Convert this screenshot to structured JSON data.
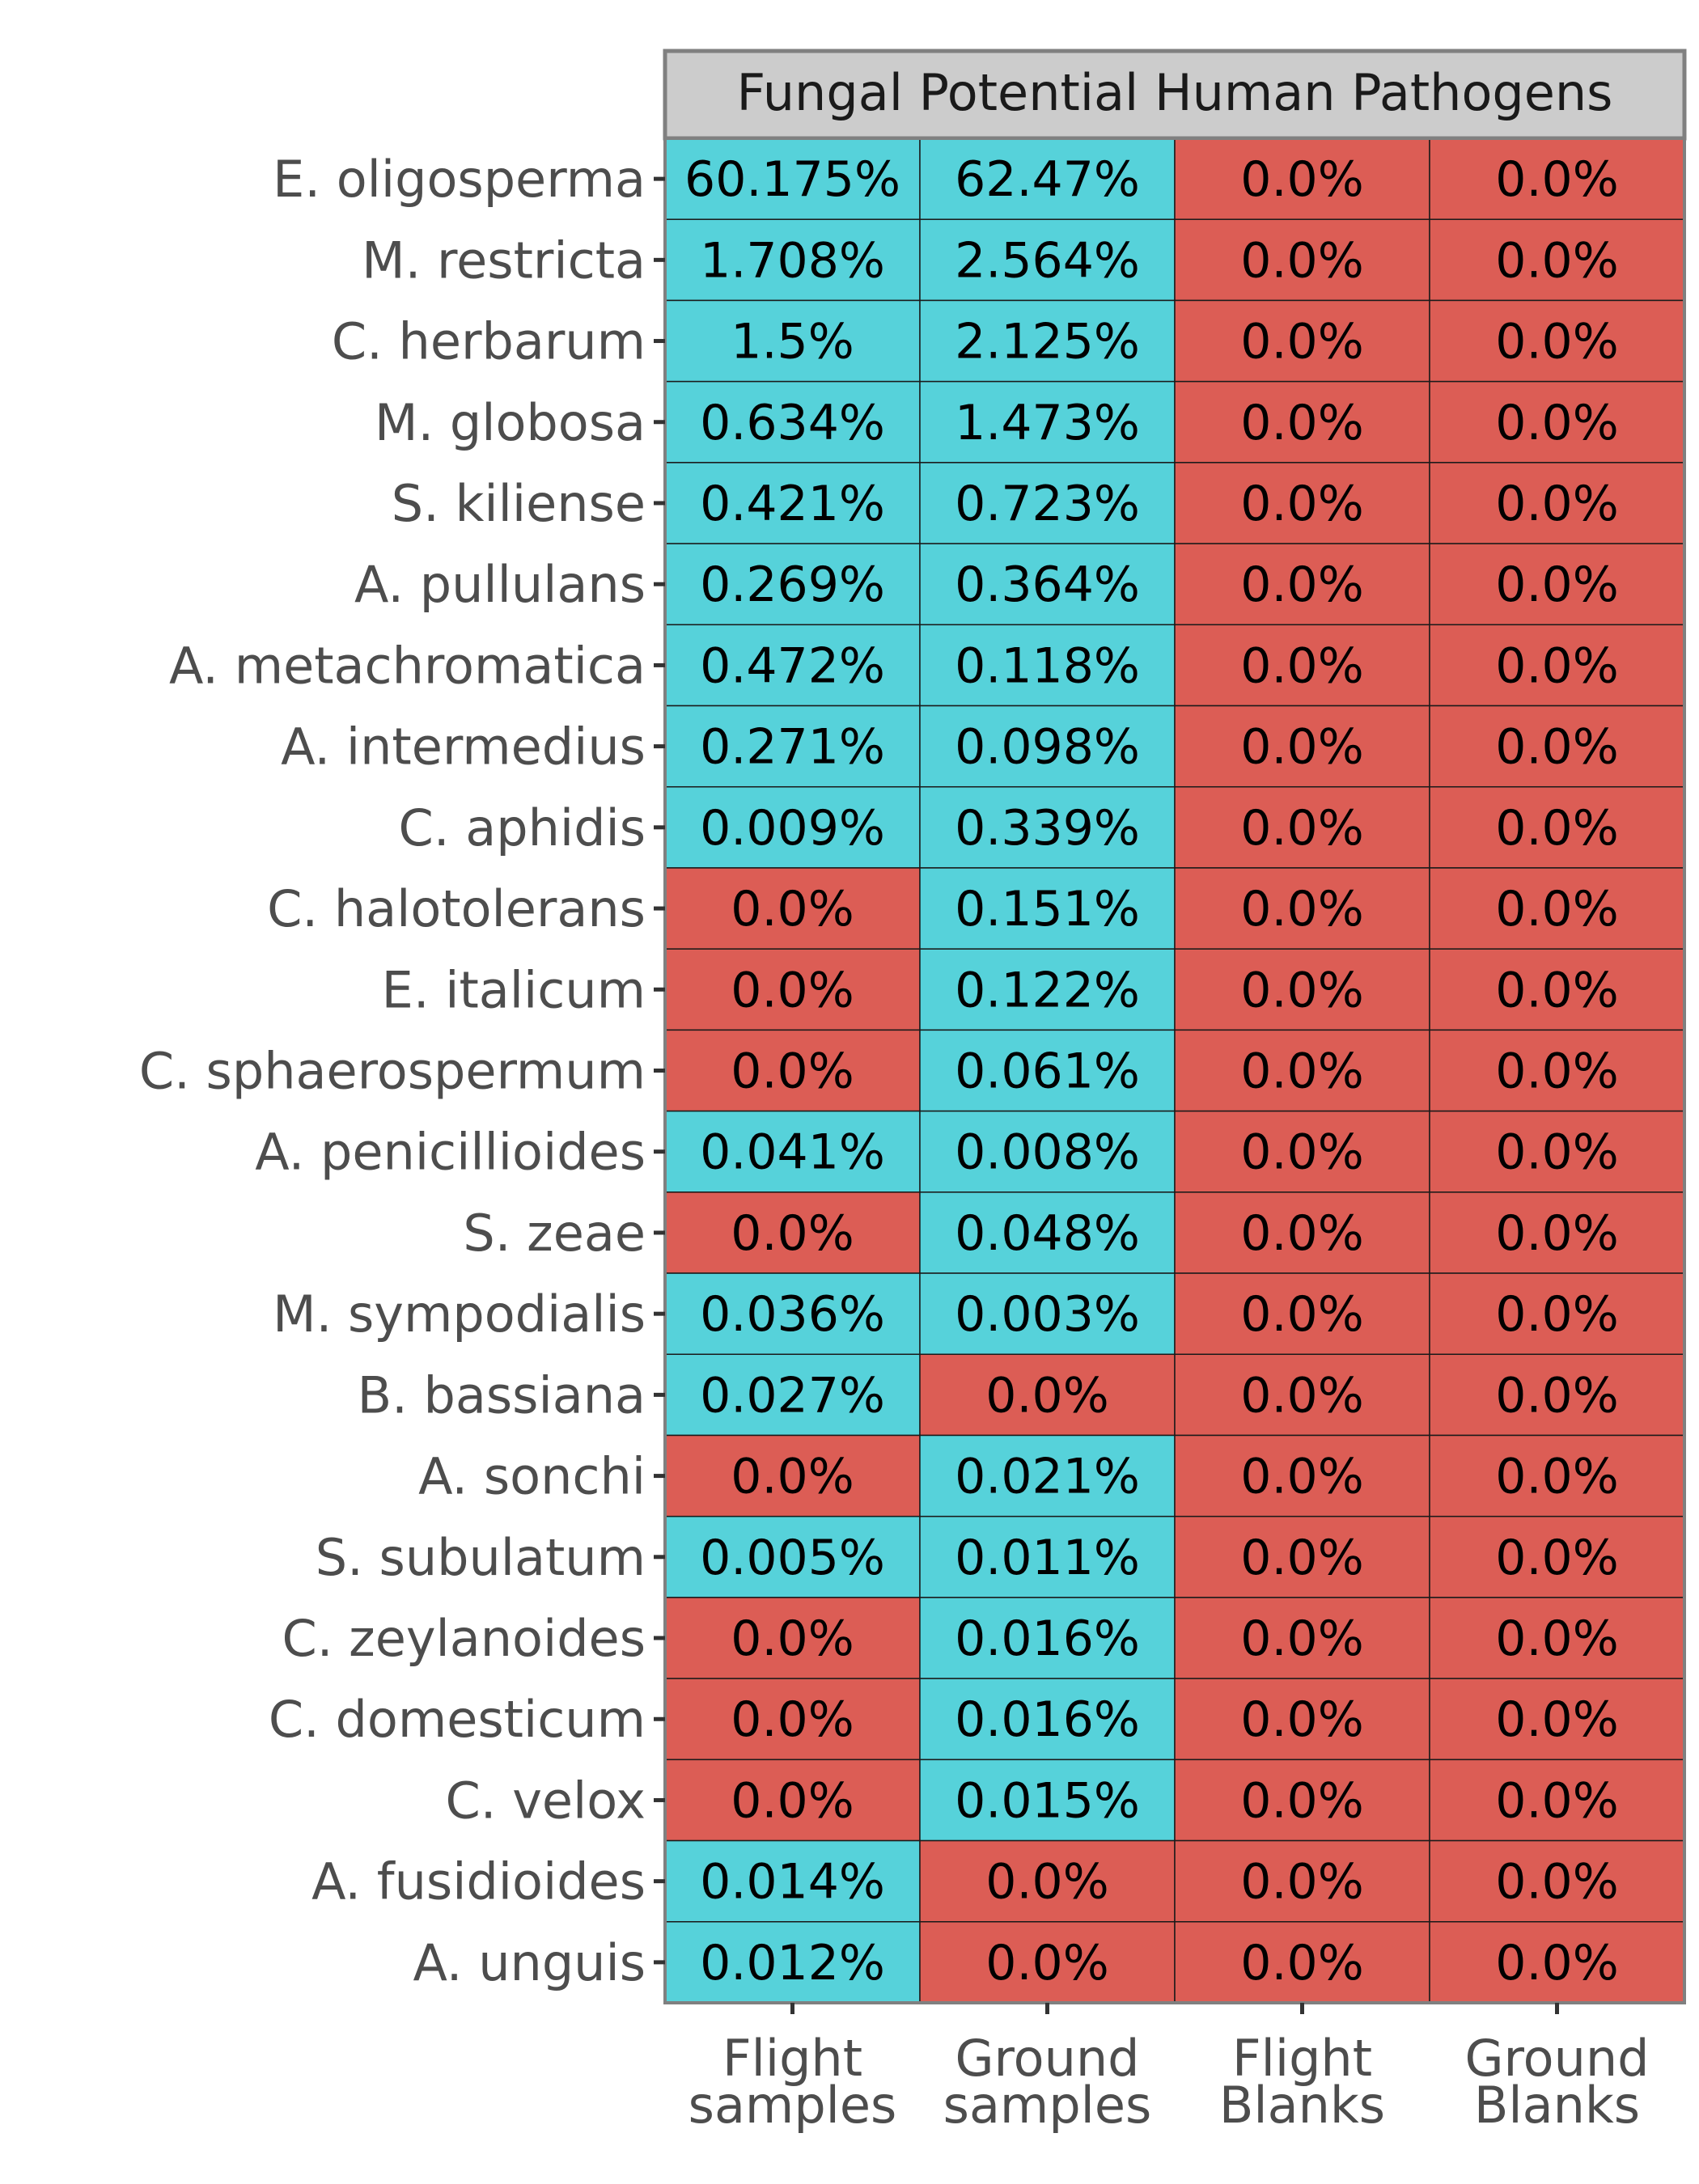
{
  "chart_data": {
    "type": "heatmap",
    "panel_title": "Fungal Potential Human Pathogens",
    "columns": [
      {
        "line1": "Flight",
        "line2": "samples"
      },
      {
        "line1": "Ground",
        "line2": "samples"
      },
      {
        "line1": "Flight",
        "line2": "Blanks"
      },
      {
        "line1": "Ground",
        "line2": "Blanks"
      }
    ],
    "rows": [
      {
        "species": "E. oligosperma",
        "values": [
          60.175,
          62.47,
          0.0,
          0.0
        ],
        "labels": [
          "60.175%",
          "62.47%",
          "0.0%",
          "0.0%"
        ]
      },
      {
        "species": "M. restricta",
        "values": [
          1.708,
          2.564,
          0.0,
          0.0
        ],
        "labels": [
          "1.708%",
          "2.564%",
          "0.0%",
          "0.0%"
        ]
      },
      {
        "species": "C. herbarum",
        "values": [
          1.5,
          2.125,
          0.0,
          0.0
        ],
        "labels": [
          "1.5%",
          "2.125%",
          "0.0%",
          "0.0%"
        ]
      },
      {
        "species": "M. globosa",
        "values": [
          0.634,
          1.473,
          0.0,
          0.0
        ],
        "labels": [
          "0.634%",
          "1.473%",
          "0.0%",
          "0.0%"
        ]
      },
      {
        "species": "S. kiliense",
        "values": [
          0.421,
          0.723,
          0.0,
          0.0
        ],
        "labels": [
          "0.421%",
          "0.723%",
          "0.0%",
          "0.0%"
        ]
      },
      {
        "species": "A. pullulans",
        "values": [
          0.269,
          0.364,
          0.0,
          0.0
        ],
        "labels": [
          "0.269%",
          "0.364%",
          "0.0%",
          "0.0%"
        ]
      },
      {
        "species": "A. metachromatica",
        "values": [
          0.472,
          0.118,
          0.0,
          0.0
        ],
        "labels": [
          "0.472%",
          "0.118%",
          "0.0%",
          "0.0%"
        ]
      },
      {
        "species": "A. intermedius",
        "values": [
          0.271,
          0.098,
          0.0,
          0.0
        ],
        "labels": [
          "0.271%",
          "0.098%",
          "0.0%",
          "0.0%"
        ]
      },
      {
        "species": "C. aphidis",
        "values": [
          0.009,
          0.339,
          0.0,
          0.0
        ],
        "labels": [
          "0.009%",
          "0.339%",
          "0.0%",
          "0.0%"
        ]
      },
      {
        "species": "C. halotolerans",
        "values": [
          0.0,
          0.151,
          0.0,
          0.0
        ],
        "labels": [
          "0.0%",
          "0.151%",
          "0.0%",
          "0.0%"
        ]
      },
      {
        "species": "E. italicum",
        "values": [
          0.0,
          0.122,
          0.0,
          0.0
        ],
        "labels": [
          "0.0%",
          "0.122%",
          "0.0%",
          "0.0%"
        ]
      },
      {
        "species": "C. sphaerospermum",
        "values": [
          0.0,
          0.061,
          0.0,
          0.0
        ],
        "labels": [
          "0.0%",
          "0.061%",
          "0.0%",
          "0.0%"
        ]
      },
      {
        "species": "A. penicillioides",
        "values": [
          0.041,
          0.008,
          0.0,
          0.0
        ],
        "labels": [
          "0.041%",
          "0.008%",
          "0.0%",
          "0.0%"
        ]
      },
      {
        "species": "S. zeae",
        "values": [
          0.0,
          0.048,
          0.0,
          0.0
        ],
        "labels": [
          "0.0%",
          "0.048%",
          "0.0%",
          "0.0%"
        ]
      },
      {
        "species": "M. sympodialis",
        "values": [
          0.036,
          0.003,
          0.0,
          0.0
        ],
        "labels": [
          "0.036%",
          "0.003%",
          "0.0%",
          "0.0%"
        ]
      },
      {
        "species": "B. bassiana",
        "values": [
          0.027,
          0.0,
          0.0,
          0.0
        ],
        "labels": [
          "0.027%",
          "0.0%",
          "0.0%",
          "0.0%"
        ]
      },
      {
        "species": "A. sonchi",
        "values": [
          0.0,
          0.021,
          0.0,
          0.0
        ],
        "labels": [
          "0.0%",
          "0.021%",
          "0.0%",
          "0.0%"
        ]
      },
      {
        "species": "S. subulatum",
        "values": [
          0.005,
          0.011,
          0.0,
          0.0
        ],
        "labels": [
          "0.005%",
          "0.011%",
          "0.0%",
          "0.0%"
        ]
      },
      {
        "species": "C. zeylanoides",
        "values": [
          0.0,
          0.016,
          0.0,
          0.0
        ],
        "labels": [
          "0.0%",
          "0.016%",
          "0.0%",
          "0.0%"
        ]
      },
      {
        "species": "C. domesticum",
        "values": [
          0.0,
          0.016,
          0.0,
          0.0
        ],
        "labels": [
          "0.0%",
          "0.016%",
          "0.0%",
          "0.0%"
        ]
      },
      {
        "species": "C. velox",
        "values": [
          0.0,
          0.015,
          0.0,
          0.0
        ],
        "labels": [
          "0.0%",
          "0.015%",
          "0.0%",
          "0.0%"
        ]
      },
      {
        "species": "A. fusidioides",
        "values": [
          0.014,
          0.0,
          0.0,
          0.0
        ],
        "labels": [
          "0.014%",
          "0.0%",
          "0.0%",
          "0.0%"
        ]
      },
      {
        "species": "A. unguis",
        "values": [
          0.012,
          0.0,
          0.0,
          0.0
        ],
        "labels": [
          "0.012%",
          "0.0%",
          "0.0%",
          "0.0%"
        ]
      }
    ],
    "colors": {
      "present": "#56d2da",
      "absent": "#dc5d55",
      "strip_fill": "#cccccc",
      "strip_border": "#808080",
      "panel_border": "#808080",
      "cell_border": "#1a1a1a"
    },
    "grid": false,
    "legend": "none"
  }
}
